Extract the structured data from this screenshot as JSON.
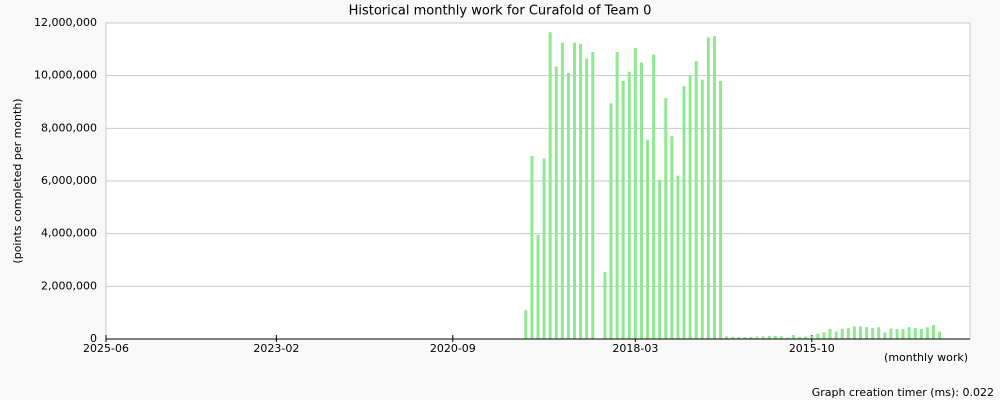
{
  "chart_data": {
    "type": "bar",
    "title": "Historical monthly work for Curafold of Team 0",
    "y_label": "(points completed per month)",
    "x_label": "(monthly work)",
    "footer": "Graph creation timer (ms): 0.022",
    "color": "#90e890",
    "grid": true,
    "xlim": [
      "2025-06",
      "2013-08"
    ],
    "xticks": [
      "2025-06",
      "2023-02",
      "2020-09",
      "2018-03",
      "2015-10"
    ],
    "ylim": [
      0,
      12000000
    ],
    "yticks": [
      {
        "value": 0,
        "label": "0"
      },
      {
        "value": 2000000,
        "label": "2,000,000"
      },
      {
        "value": 4000000,
        "label": "4,000,000"
      },
      {
        "value": 6000000,
        "label": "6,000,000"
      },
      {
        "value": 8000000,
        "label": "8,000,000"
      },
      {
        "value": 10000000,
        "label": "10,000,000"
      },
      {
        "value": 12000000,
        "label": "12,000,000"
      }
    ],
    "x": [
      "2019-09",
      "2019-08",
      "2019-07",
      "2019-06",
      "2019-05",
      "2019-04",
      "2019-03",
      "2019-02",
      "2019-01",
      "2018-12",
      "2018-11",
      "2018-10",
      "2018-09",
      "2018-08",
      "2018-07",
      "2018-06",
      "2018-05",
      "2018-04",
      "2018-03",
      "2018-02",
      "2018-01",
      "2017-12",
      "2017-11",
      "2017-10",
      "2017-09",
      "2017-08",
      "2017-07",
      "2017-06",
      "2017-05",
      "2017-04",
      "2017-03",
      "2017-02",
      "2017-01",
      "2016-12",
      "2016-11",
      "2016-10",
      "2016-09",
      "2016-08",
      "2016-07",
      "2016-06",
      "2016-05",
      "2016-04",
      "2016-03",
      "2016-02",
      "2016-01",
      "2015-12",
      "2015-11",
      "2015-10",
      "2015-09",
      "2015-08",
      "2015-07",
      "2015-06",
      "2015-05",
      "2015-04",
      "2015-03",
      "2015-02",
      "2015-01",
      "2014-12",
      "2014-11",
      "2014-10",
      "2014-09",
      "2014-08",
      "2014-07",
      "2014-06",
      "2014-05",
      "2014-04",
      "2014-03",
      "2014-02",
      "2014-01"
    ],
    "values": [
      1100000,
      6950000,
      3950000,
      6850000,
      11650000,
      10350000,
      11250000,
      10100000,
      11250000,
      11200000,
      10650000,
      10900000,
      0,
      2550000,
      8950000,
      10900000,
      9800000,
      10150000,
      11050000,
      10500000,
      7550000,
      10800000,
      6050000,
      9150000,
      7700000,
      6200000,
      9600000,
      10000000,
      10550000,
      9850000,
      11450000,
      11500000,
      9800000,
      100000,
      80000,
      80000,
      70000,
      80000,
      90000,
      100000,
      120000,
      120000,
      100000,
      50000,
      150000,
      80000,
      100000,
      100000,
      200000,
      250000,
      380000,
      280000,
      380000,
      420000,
      480000,
      480000,
      450000,
      420000,
      450000,
      250000,
      400000,
      380000,
      380000,
      450000,
      420000,
      380000,
      450000,
      520000,
      280000
    ]
  }
}
